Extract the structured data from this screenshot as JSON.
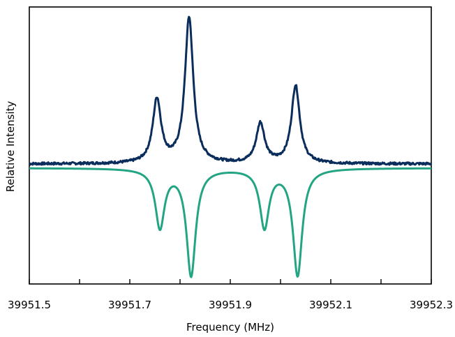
{
  "chart_data": {
    "type": "line",
    "title": "",
    "xlabel": "Frequency (MHz)",
    "ylabel": "Relative Intensity",
    "xlim": [
      39951.5,
      39952.3
    ],
    "ylim": [
      -1.15,
      1.55
    ],
    "grid": false,
    "legend": "none",
    "x_ticks": [
      39951.5,
      39951.6,
      39951.7,
      39951.8,
      39951.9,
      39952.0,
      39952.1,
      39952.2,
      39952.3
    ],
    "x_tick_labels": [
      "39951.5",
      "",
      "39951.7",
      "",
      "39951.9",
      "",
      "39952.1",
      "",
      "39952.3"
    ],
    "series": [
      {
        "color": "#0b2d5b",
        "baseline": 0.02,
        "noise": 0.012,
        "peaks": [
          {
            "x": 39951.754,
            "height": 0.62
          },
          {
            "x": 39951.818,
            "height": 1.42
          },
          {
            "x": 39951.96,
            "height": 0.39
          },
          {
            "x": 39952.03,
            "height": 0.76
          }
        ],
        "width": 0.01
      },
      {
        "color": "#23a483",
        "baseline": -0.02,
        "noise": 0,
        "peaks": [
          {
            "x": 39951.76,
            "height": -0.57
          },
          {
            "x": 39951.822,
            "height": -1.04
          },
          {
            "x": 39951.968,
            "height": -0.57
          },
          {
            "x": 39952.034,
            "height": -1.04
          }
        ],
        "width": 0.011
      }
    ]
  }
}
